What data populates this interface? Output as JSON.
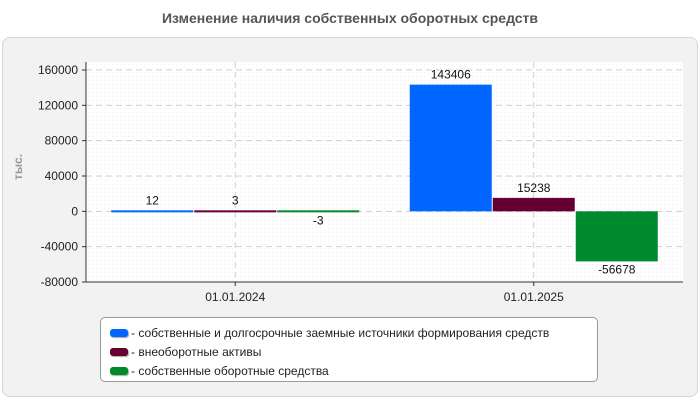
{
  "chart_data": {
    "type": "bar",
    "title": "Изменение наличия собственных оборотных средств",
    "ylabel": "тыс.",
    "xlabel": "",
    "categories": [
      "01.01.2024",
      "01.01.2025"
    ],
    "ylim": [
      -80000,
      160000
    ],
    "yticks": [
      160000,
      120000,
      80000,
      40000,
      0,
      -40000,
      -80000
    ],
    "grid": true,
    "legend_position": "bottom",
    "series": [
      {
        "name": "- собственные и долгосрочные заемные источники формирования средств",
        "color": "#0066ff",
        "values": [
          12,
          143406
        ],
        "labels": [
          "12",
          "143406"
        ]
      },
      {
        "name": "- внеоборотные активы",
        "color": "#660033",
        "values": [
          3,
          15238
        ],
        "labels": [
          "3",
          "15238"
        ]
      },
      {
        "name": "- собственные оборотные средства",
        "color": "#008a2e",
        "values": [
          -3,
          -56678
        ],
        "labels": [
          "-3",
          "-56678"
        ]
      }
    ]
  }
}
